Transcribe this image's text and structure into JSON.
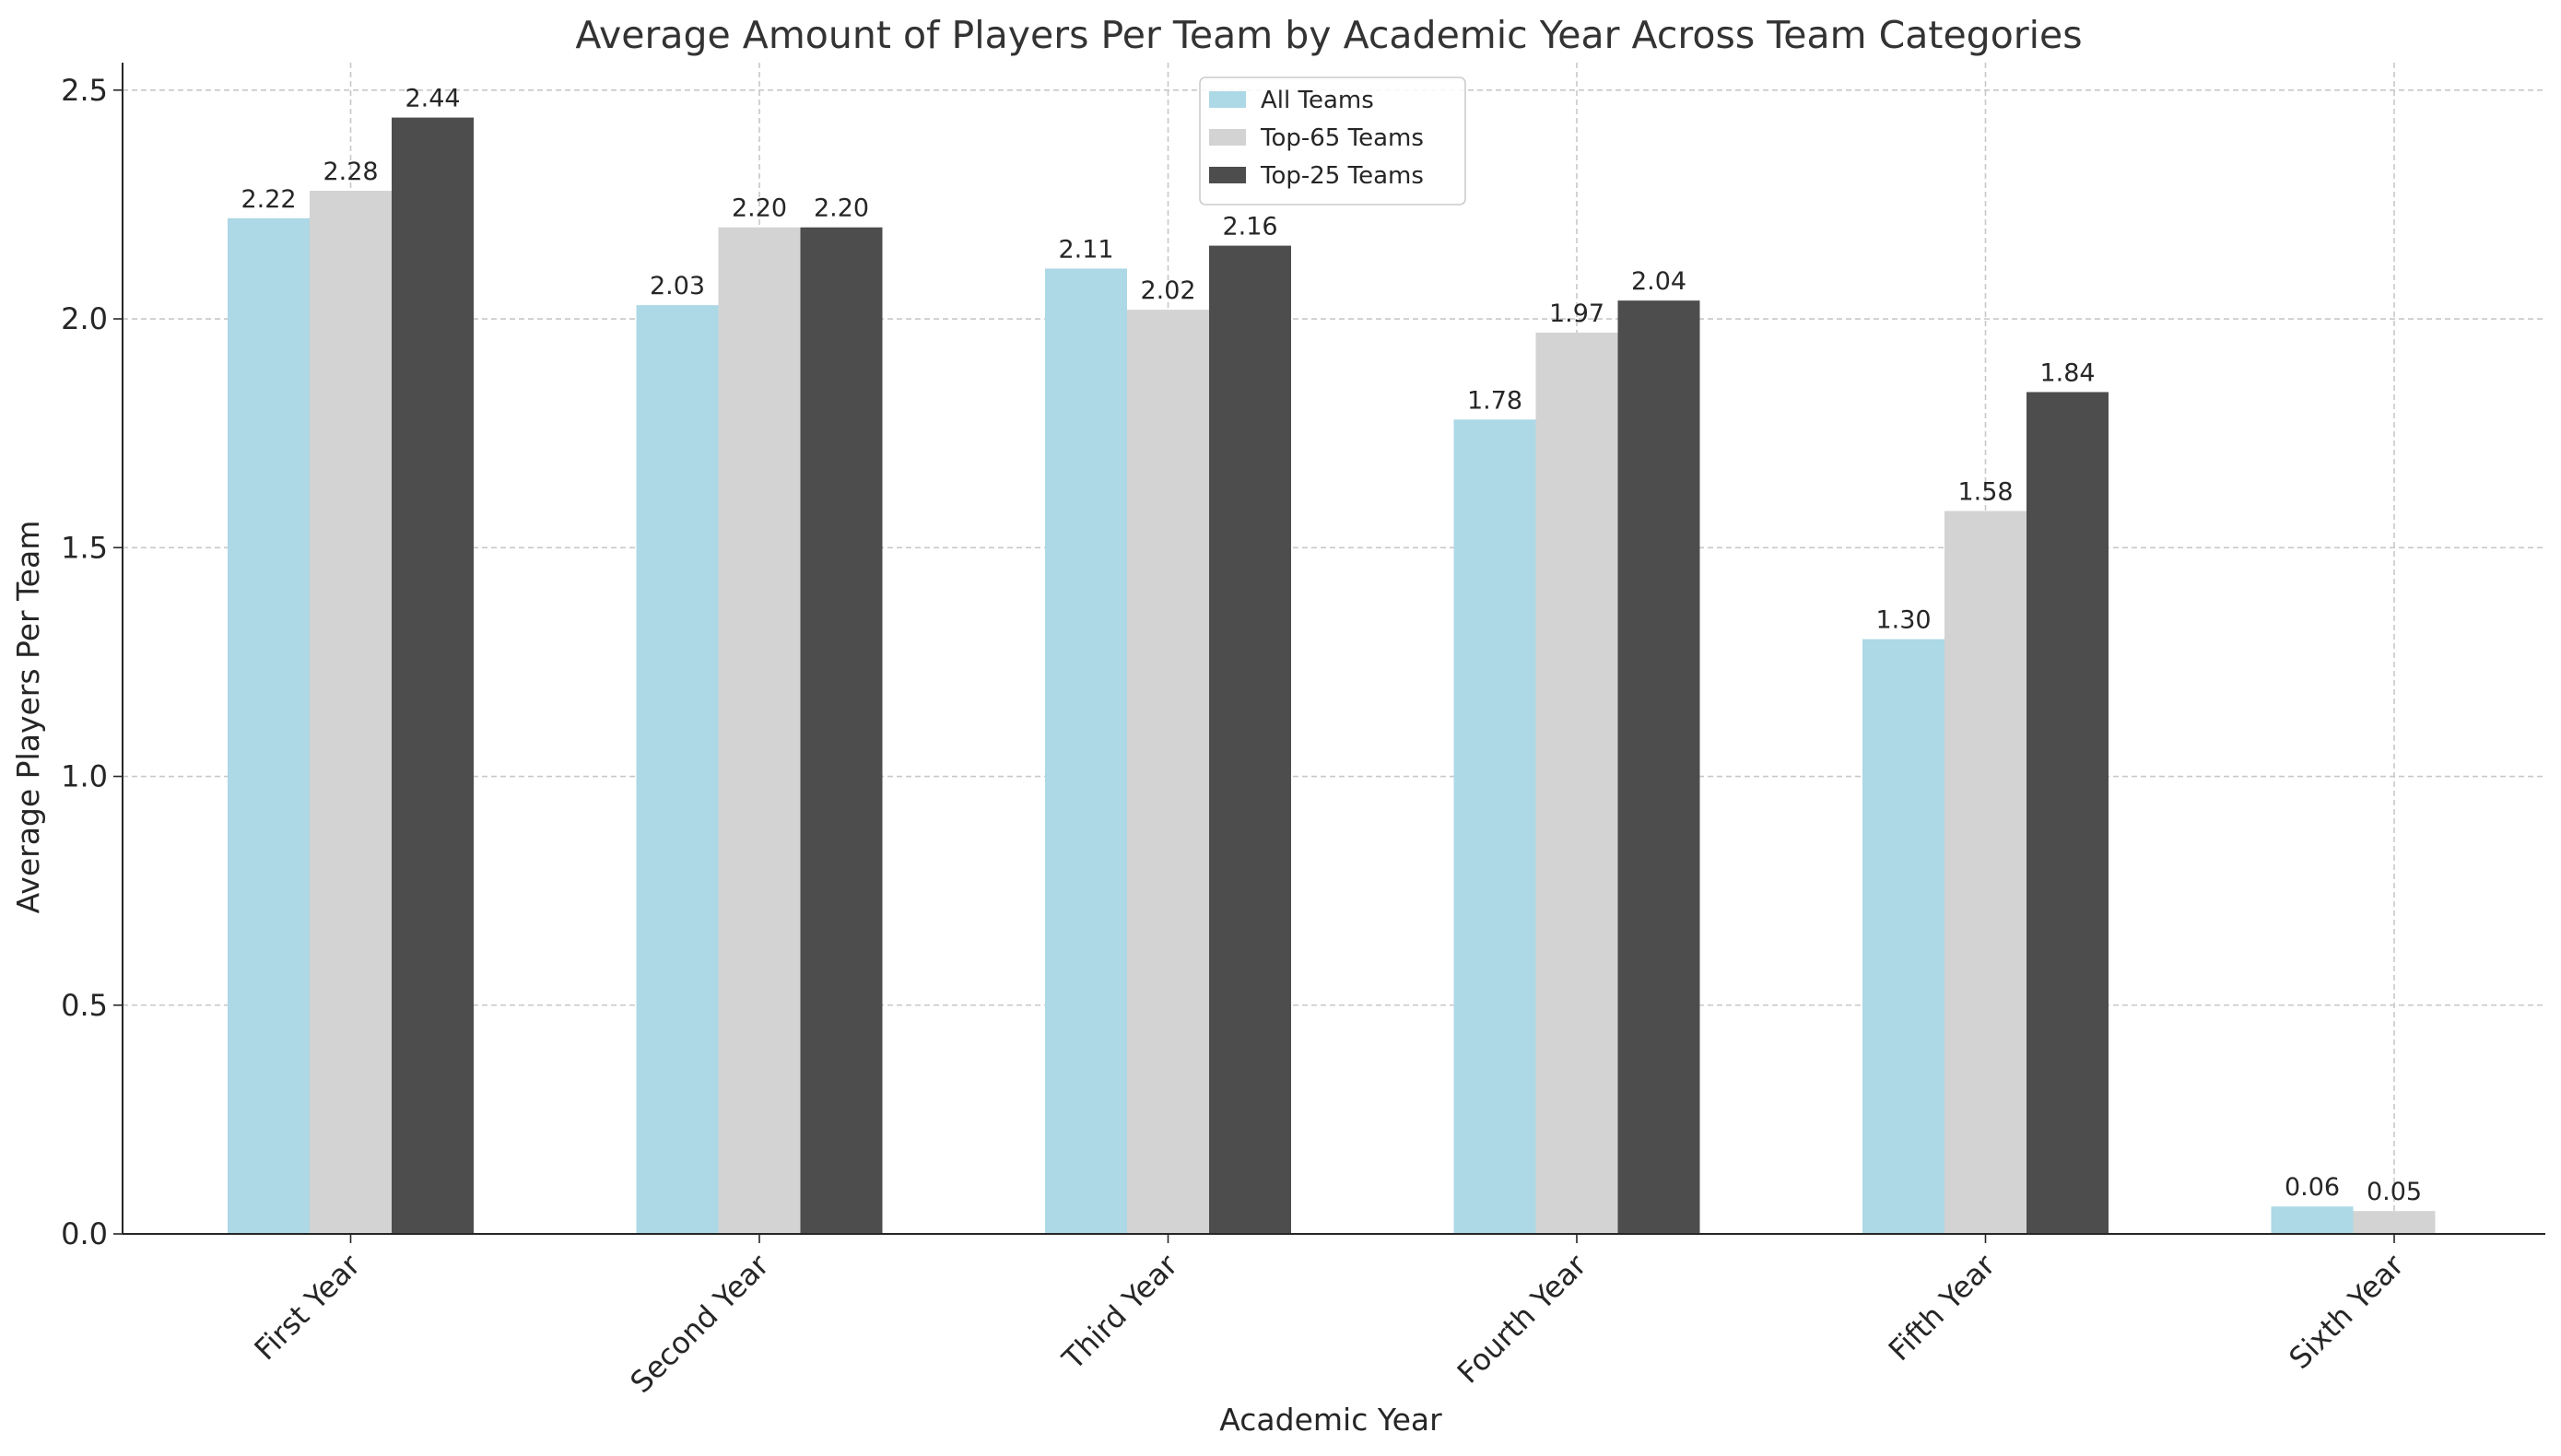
{
  "chart_data": {
    "type": "bar",
    "title": "Average Amount of Players Per Team by Academic Year Across Team Categories",
    "xlabel": "Academic Year",
    "ylabel": "Average Players Per Team",
    "categories": [
      "First Year",
      "Second Year",
      "Third Year",
      "Fourth Year",
      "Fifth Year",
      "Sixth Year"
    ],
    "series": [
      {
        "name": "All Teams",
        "color": "#add8e6",
        "values": [
          2.22,
          2.03,
          2.11,
          1.78,
          1.3,
          0.06
        ],
        "labels": [
          "2.22",
          "2.03",
          "2.11",
          "1.78",
          "1.30",
          "0.06"
        ]
      },
      {
        "name": "Top-65 Teams",
        "color": "#d3d3d3",
        "values": [
          2.28,
          2.2,
          2.02,
          1.97,
          1.58,
          0.05
        ],
        "labels": [
          "2.28",
          "2.20",
          "2.02",
          "1.97",
          "1.58",
          "0.05"
        ]
      },
      {
        "name": "Top-25 Teams",
        "color": "#4d4d4d",
        "values": [
          2.44,
          2.2,
          2.16,
          2.04,
          1.84,
          0
        ],
        "labels": [
          "2.44",
          "2.20",
          "2.16",
          "2.04",
          "1.84",
          ""
        ]
      }
    ],
    "ylim": [
      0,
      2.56
    ],
    "yticks": [
      0.0,
      0.5,
      1.0,
      1.5,
      2.0,
      2.5
    ],
    "ytick_labels": [
      "0.0",
      "0.5",
      "1.0",
      "1.5",
      "2.0",
      "2.5"
    ],
    "grid": true,
    "legend_position": "upper-center"
  }
}
